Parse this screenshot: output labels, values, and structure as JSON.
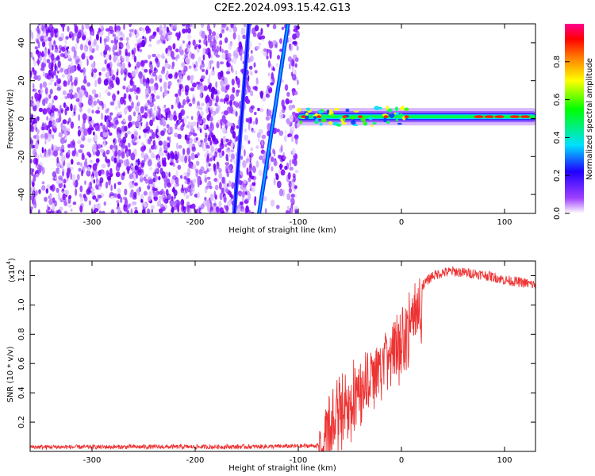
{
  "figure": {
    "title": "C2E2.2024.093.15.42.G13"
  },
  "chart_data": [
    {
      "type": "heatmap",
      "xlabel": "Height of straight line (km)",
      "ylabel": "Frequency (Hz)",
      "xlim": [
        -360,
        130
      ],
      "ylim": [
        -50,
        50
      ],
      "xticks": [
        -300,
        -200,
        -100,
        0,
        100
      ],
      "yticks": [
        -40,
        -20,
        0,
        20,
        40
      ],
      "colorbar": {
        "label": "Normalized spectral amplitude",
        "ticks": [
          0.0,
          0.2,
          0.4,
          0.6,
          0.8
        ],
        "range": [
          0,
          1
        ],
        "colors": [
          "#ffffff",
          "#8b00ff",
          "#0000ff",
          "#00ffff",
          "#00ff00",
          "#ffff00",
          "#ff7f00",
          "#ff0000",
          "#ff0080"
        ]
      },
      "features": {
        "noise_region_x": [
          -360,
          -100
        ],
        "tone_line_frequency": 1,
        "tone_line_start_x": -100,
        "diagonal_lines": [
          {
            "x_at_ymin": -162,
            "x_at_ymax": -148
          },
          {
            "x_at_ymin": -138,
            "x_at_ymax": -110
          }
        ]
      }
    },
    {
      "type": "line",
      "xlabel": "Height of straight line (km)",
      "ylabel": "SNR (10 * v/v)",
      "yscale_label": "(x10",
      "yscale_exp": "4",
      "yscale_close": ")",
      "xlim": [
        -360,
        130
      ],
      "ylim": [
        0,
        13000
      ],
      "xticks": [
        -300,
        -200,
        -100,
        0,
        100
      ],
      "yticks": [
        2000,
        4000,
        6000,
        8000,
        10000,
        12000
      ],
      "ytick_labels": [
        "0.2",
        "0.4",
        "0.6",
        "0.8",
        "1.0",
        "1.2"
      ],
      "color": "#ee3333",
      "series": [
        {
          "x": [
            -360,
            -300,
            -250,
            -200,
            -150,
            -120,
            -100,
            -80,
            -75,
            -70,
            -60,
            -50,
            -40,
            -30,
            -20,
            -10,
            0,
            10,
            20,
            30,
            40,
            50,
            60,
            70,
            80,
            90,
            100,
            110,
            120,
            130
          ],
          "values": [
            300,
            300,
            310,
            310,
            320,
            340,
            360,
            400,
            1800,
            3000,
            3800,
            4500,
            5300,
            6200,
            7000,
            7800,
            8600,
            10000,
            11300,
            12000,
            12200,
            12300,
            12200,
            12150,
            12050,
            11900,
            11700,
            11600,
            11500,
            11350
          ]
        }
      ]
    }
  ]
}
